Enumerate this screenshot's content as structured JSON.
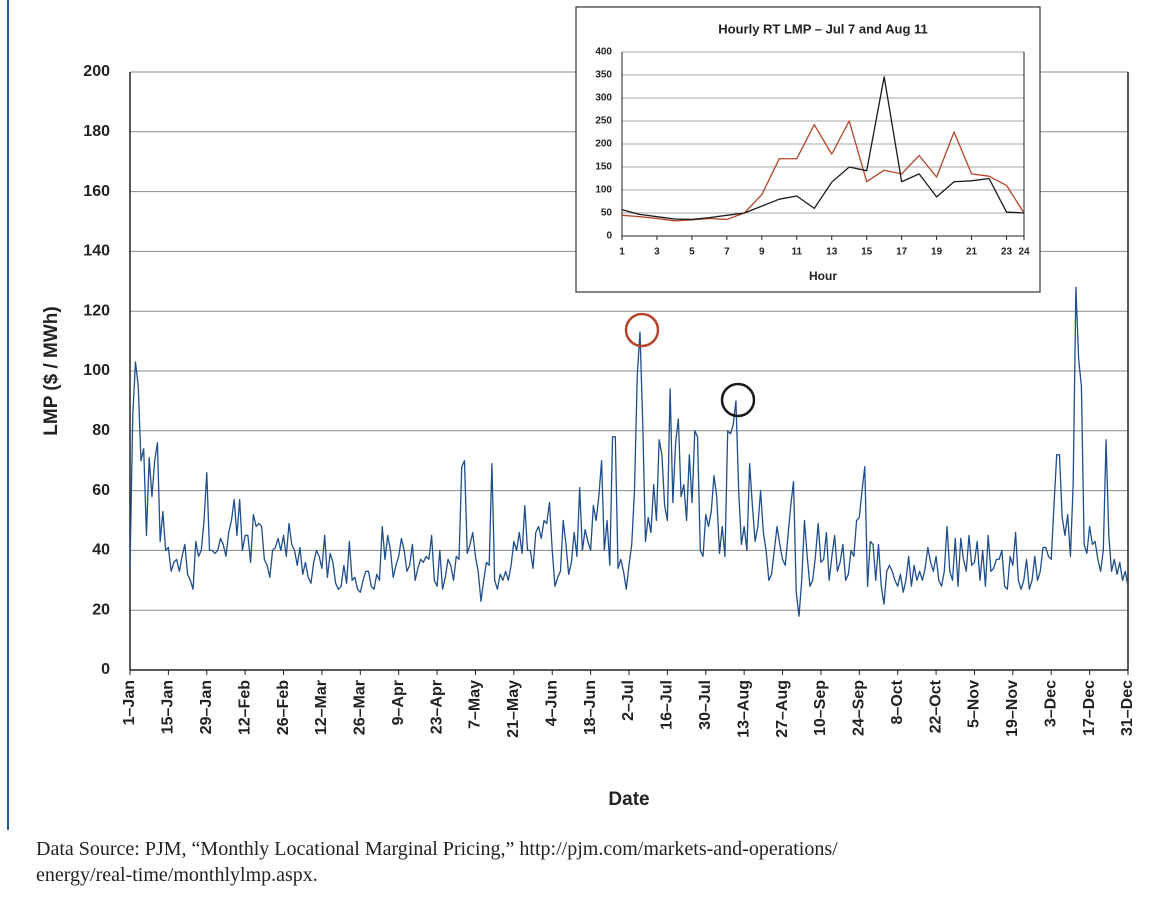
{
  "chart_data": [
    {
      "type": "line",
      "ylabel": "LMP ($ / MWh)",
      "xlabel": "Date",
      "categories": [
        "1–Jan",
        null,
        null,
        null,
        null,
        null,
        null,
        null,
        null,
        null,
        null,
        null,
        null,
        null,
        "15–Jan",
        null,
        null,
        null,
        null,
        null,
        null,
        null,
        null,
        null,
        null,
        null,
        null,
        null,
        "29–Jan",
        null,
        null,
        null,
        null,
        null,
        null,
        null,
        null,
        null,
        null,
        null,
        null,
        null,
        "12–Feb",
        null,
        null,
        null,
        null,
        null,
        null,
        null,
        null,
        null,
        null,
        null,
        null,
        null,
        "26–Feb",
        null,
        null,
        null,
        null,
        null,
        null,
        null,
        null,
        null,
        null,
        null,
        null,
        null,
        "12–Mar",
        null,
        null,
        null,
        null,
        null,
        null,
        null,
        null,
        null,
        null,
        null,
        null,
        null,
        "26–Mar",
        null,
        null,
        null,
        null,
        null,
        null,
        null,
        null,
        null,
        null,
        null,
        null,
        null,
        "9–Apr",
        null,
        null,
        null,
        null,
        null,
        null,
        null,
        null,
        null,
        null,
        null,
        null,
        null,
        "23–Apr",
        null,
        null,
        null,
        null,
        null,
        null,
        null,
        null,
        null,
        null,
        null,
        null,
        null,
        "7–May",
        null,
        null,
        null,
        null,
        null,
        null,
        null,
        null,
        null,
        null,
        null,
        null,
        null,
        "21–May",
        null,
        null,
        null,
        null,
        null,
        null,
        null,
        null,
        null,
        null,
        null,
        null,
        null,
        "4–Jun",
        null,
        null,
        null,
        null,
        null,
        null,
        null,
        null,
        null,
        null,
        null,
        null,
        null,
        "18–Jun",
        null,
        null,
        null,
        null,
        null,
        null,
        null,
        null,
        null,
        null,
        null,
        null,
        null,
        "2–Jul",
        null,
        null,
        null,
        null,
        null,
        null,
        null,
        null,
        null,
        null,
        null,
        null,
        null,
        "16–Jul",
        null,
        null,
        null,
        null,
        null,
        null,
        null,
        null,
        null,
        null,
        null,
        null,
        null,
        "30–Jul",
        null,
        null,
        null,
        null,
        null,
        null,
        null,
        null,
        null,
        null,
        null,
        null,
        null,
        "13–Aug",
        null,
        null,
        null,
        null,
        null,
        null,
        null,
        null,
        null,
        null,
        null,
        null,
        null,
        "27–Aug",
        null,
        null,
        null,
        null,
        null,
        null,
        null,
        null,
        null,
        null,
        null,
        null,
        null,
        "10–Sep",
        null,
        null,
        null,
        null,
        null,
        null,
        null,
        null,
        null,
        null,
        null,
        null,
        null,
        "24–Sep",
        null,
        null,
        null,
        null,
        null,
        null,
        null,
        null,
        null,
        null,
        null,
        null,
        null,
        "8–Oct",
        null,
        null,
        null,
        null,
        null,
        null,
        null,
        null,
        null,
        null,
        null,
        null,
        null,
        "22–Oct",
        null,
        null,
        null,
        null,
        null,
        null,
        null,
        null,
        null,
        null,
        null,
        null,
        null,
        "5–Nov",
        null,
        null,
        null,
        null,
        null,
        null,
        null,
        null,
        null,
        null,
        null,
        null,
        null,
        "19–Nov",
        null,
        null,
        null,
        null,
        null,
        null,
        null,
        null,
        null,
        null,
        null,
        null,
        null,
        "3–Dec",
        null,
        null,
        null,
        null,
        null,
        null,
        null,
        null,
        null,
        null,
        null,
        null,
        null,
        "17–Dec",
        null,
        null,
        null,
        null,
        null,
        null,
        null,
        null,
        null,
        null,
        null,
        null,
        null,
        "31–Dec"
      ],
      "series": [
        {
          "color": "#1f4e8c",
          "values": [
            34,
            85,
            103,
            95,
            70,
            74,
            45,
            71,
            58,
            70,
            76,
            43,
            53,
            40,
            41,
            33,
            36,
            37,
            33,
            38,
            42,
            32,
            30,
            27,
            43,
            38,
            40,
            50,
            66,
            40,
            40,
            39,
            40,
            44,
            42,
            38,
            46,
            50,
            57,
            45,
            57,
            40,
            45,
            45,
            36,
            52,
            48,
            49,
            48,
            37,
            35,
            31,
            40,
            41,
            44,
            40,
            45,
            38,
            49,
            42,
            40,
            35,
            41,
            32,
            36,
            31,
            29,
            36,
            40,
            38,
            34,
            45,
            31,
            39,
            36,
            29,
            27,
            28,
            35,
            29,
            43,
            30,
            31,
            27,
            26,
            30,
            33,
            33,
            28,
            27,
            32,
            30,
            48,
            37,
            45,
            40,
            31,
            35,
            38,
            44,
            40,
            33,
            35,
            42,
            30,
            34,
            37,
            36,
            38,
            37,
            45,
            30,
            28,
            40,
            27,
            31,
            37,
            35,
            30,
            38,
            37,
            68,
            70,
            39,
            42,
            46,
            38,
            33,
            23,
            30,
            36,
            35,
            69,
            30,
            27,
            32,
            30,
            33,
            30,
            35,
            43,
            40,
            46,
            39,
            55,
            40,
            40,
            34,
            46,
            48,
            44,
            50,
            49,
            56,
            40,
            28,
            31,
            33,
            50,
            42,
            32,
            36,
            46,
            38,
            61,
            40,
            47,
            43,
            40,
            55,
            50,
            58,
            70,
            40,
            50,
            35,
            78,
            78,
            34,
            37,
            33,
            27,
            35,
            42,
            60,
            98,
            113,
            83,
            43,
            51,
            46,
            62,
            50,
            77,
            72,
            55,
            50,
            94,
            56,
            76,
            84,
            58,
            62,
            50,
            72,
            56,
            80,
            78,
            40,
            38,
            52,
            48,
            53,
            65,
            58,
            39,
            48,
            38,
            80,
            79,
            82,
            90,
            60,
            42,
            48,
            40,
            69,
            55,
            43,
            48,
            60,
            46,
            40,
            30,
            32,
            40,
            48,
            42,
            37,
            35,
            45,
            55,
            63,
            26,
            18,
            30,
            50,
            38,
            28,
            30,
            38,
            49,
            36,
            37,
            46,
            30,
            38,
            45,
            33,
            36,
            42,
            30,
            32,
            40,
            38,
            50,
            51,
            60,
            68,
            28,
            43,
            42,
            30,
            42,
            28,
            22,
            33,
            35,
            33,
            30,
            28,
            32,
            26,
            30,
            38,
            28,
            35,
            30,
            33,
            30,
            34,
            41,
            36,
            33,
            38,
            30,
            28,
            33,
            48,
            33,
            30,
            44,
            28,
            44,
            37,
            33,
            45,
            35,
            36,
            43,
            30,
            40,
            28,
            45,
            33,
            34,
            37,
            37,
            40,
            28,
            27,
            38,
            35,
            46,
            30,
            27,
            30,
            37,
            27,
            30,
            38,
            30,
            33,
            41,
            41,
            38,
            37,
            55,
            72,
            72,
            51,
            45,
            52,
            38,
            62,
            128,
            104,
            95,
            42,
            39,
            48,
            42,
            43,
            37,
            33,
            40,
            77,
            45,
            33,
            37,
            32,
            36,
            30,
            33,
            28
          ]
        }
      ],
      "ylim": [
        0,
        200
      ],
      "yticks": [
        0,
        20,
        40,
        60,
        80,
        100,
        120,
        140,
        160,
        180,
        200
      ],
      "grid": true
    },
    {
      "type": "line",
      "title": "Hourly RT LMP – Jul 7 and Aug 11",
      "xlabel": "Hour",
      "x": [
        1,
        2,
        3,
        4,
        5,
        6,
        7,
        8,
        9,
        10,
        11,
        12,
        13,
        14,
        15,
        16,
        17,
        18,
        19,
        20,
        21,
        22,
        23,
        24
      ],
      "series": [
        {
          "color": "#b5452a",
          "values": [
            45,
            42,
            38,
            33,
            35,
            38,
            36,
            50,
            90,
            168,
            168,
            242,
            178,
            250,
            118,
            143,
            135,
            175,
            128,
            226,
            135,
            130,
            110,
            50
          ]
        },
        {
          "color": "#1a1a1a",
          "values": [
            57,
            47,
            42,
            37,
            36,
            40,
            45,
            50,
            65,
            80,
            87,
            60,
            117,
            150,
            142,
            346,
            118,
            135,
            85,
            118,
            120,
            125,
            52,
            50
          ]
        }
      ],
      "xlim": [
        1,
        24
      ],
      "xticks": [
        1,
        3,
        5,
        7,
        9,
        11,
        13,
        15,
        17,
        19,
        21,
        23,
        24
      ],
      "ylim": [
        0,
        400
      ],
      "yticks": [
        0,
        50,
        100,
        150,
        200,
        250,
        300,
        350,
        400
      ],
      "grid": true
    }
  ],
  "source": [
    "Data Source: PJM, “Monthly Locational Marginal Pricing,” http://pjm.com/markets-and-operations/",
    "energy/real-time/monthlylmp.aspx."
  ]
}
